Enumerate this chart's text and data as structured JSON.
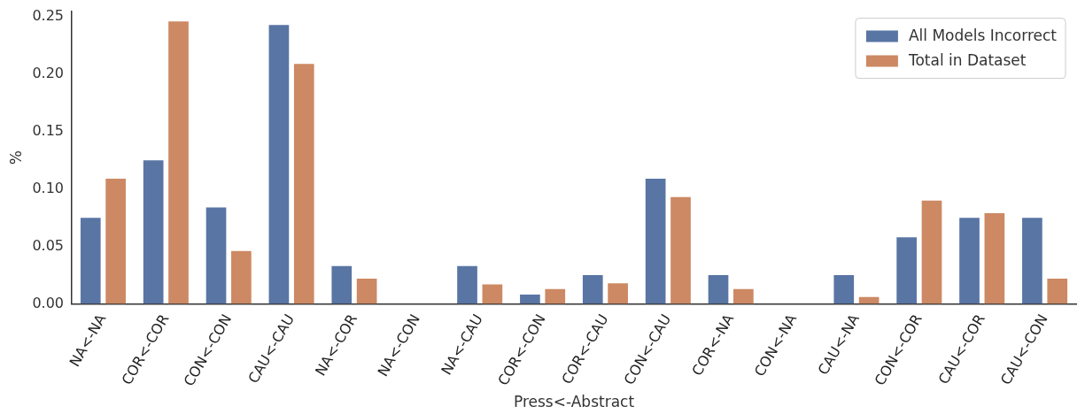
{
  "chart_data": {
    "type": "bar",
    "xlabel": "Press<-Abstract",
    "ylabel": "%",
    "categories": [
      "NA<-NA",
      "COR<-COR",
      "CON<-CON",
      "CAU<-CAU",
      "NA<-COR",
      "NA<-CON",
      "NA<-CAU",
      "COR<-CON",
      "COR<-CAU",
      "CON<-CAU",
      "COR<-NA",
      "CON<-NA",
      "CAU<-NA",
      "CON<-COR",
      "CAU<-COR",
      "CAU<-CON"
    ],
    "series": [
      {
        "name": "All Models Incorrect",
        "color": "#5975a4",
        "values": [
          0.075,
          0.125,
          0.084,
          0.243,
          0.033,
          0,
          0.033,
          0.008,
          0.025,
          0.109,
          0.025,
          0,
          0.025,
          0.058,
          0.075,
          0.075
        ]
      },
      {
        "name": "Total in Dataset",
        "color": "#cc8963",
        "values": [
          0.109,
          0.246,
          0.046,
          0.209,
          0.022,
          0,
          0.017,
          0.013,
          0.018,
          0.093,
          0.013,
          0,
          0.006,
          0.09,
          0.079,
          0.022
        ]
      }
    ],
    "ylim": [
      0,
      0.255
    ],
    "yticks": [
      {
        "value": 0,
        "label": "0.00"
      },
      {
        "value": 0.05,
        "label": "0.05"
      },
      {
        "value": 0.1,
        "label": "0.10"
      },
      {
        "value": 0.15,
        "label": "0.15"
      },
      {
        "value": 0.2,
        "label": "0.20"
      },
      {
        "value": 0.25,
        "label": "0.25"
      }
    ],
    "grid": false,
    "legend": "top right"
  }
}
